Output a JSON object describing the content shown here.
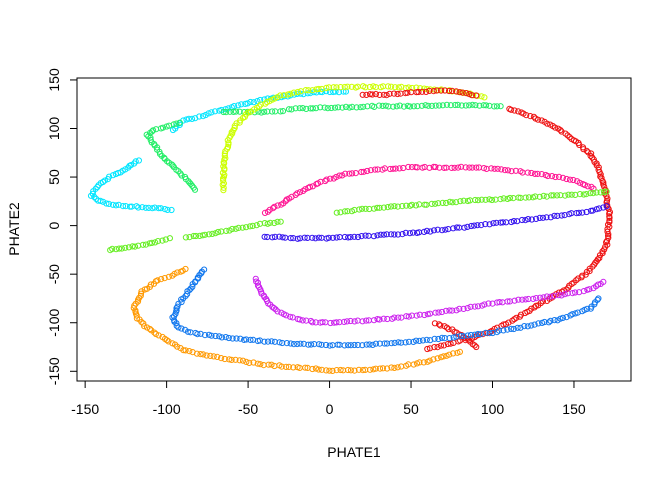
{
  "chart_data": {
    "type": "scatter",
    "title": "",
    "xlabel": "PHATE1",
    "ylabel": "PHATE2",
    "xlim": [
      -155,
      185
    ],
    "ylim": [
      -160,
      152
    ],
    "xticks": [
      -150,
      -100,
      -50,
      0,
      50,
      100,
      150
    ],
    "yticks": [
      -150,
      -100,
      -50,
      0,
      50,
      100,
      150
    ],
    "grid": false,
    "legend": "none",
    "marker": "open-circle",
    "series": [
      {
        "color": "#00E5FF",
        "segments": [
          [
            [
              -97,
              16
            ],
            [
              -105,
              18
            ],
            [
              -115,
              19
            ],
            [
              -125,
              20
            ],
            [
              -135,
              22
            ],
            [
              -142,
              26
            ],
            [
              -146,
              31
            ],
            [
              -143,
              40
            ],
            [
              -135,
              50
            ],
            [
              -125,
              58
            ],
            [
              -120,
              64
            ],
            [
              -117,
              67
            ]
          ],
          [
            [
              -96,
              98
            ],
            [
              -90,
              108
            ],
            [
              -80,
              112
            ],
            [
              -70,
              118
            ],
            [
              -60,
              122
            ],
            [
              -50,
              126
            ],
            [
              -40,
              130
            ],
            [
              -30,
              132
            ],
            [
              -20,
              135
            ],
            [
              -10,
              137
            ],
            [
              0,
              138
            ],
            [
              10,
              138
            ]
          ]
        ]
      },
      {
        "color": "#22EE66",
        "segments": [
          [
            [
              -82,
              37
            ],
            [
              -88,
              48
            ],
            [
              -95,
              60
            ],
            [
              -103,
              72
            ],
            [
              -108,
              84
            ],
            [
              -110,
              90
            ],
            [
              -112,
              94
            ],
            [
              -108,
              98
            ],
            [
              -100,
              102
            ],
            [
              -92,
              106
            ]
          ],
          [
            [
              -25,
              120
            ],
            [
              -10,
              121
            ],
            [
              10,
              122
            ],
            [
              30,
              123
            ],
            [
              50,
              123
            ],
            [
              70,
              124
            ],
            [
              90,
              124
            ],
            [
              105,
              123
            ]
          ],
          [
            [
              -28,
              118
            ],
            [
              -40,
              117
            ],
            [
              -55,
              117
            ],
            [
              -65,
              117
            ]
          ]
        ]
      },
      {
        "color": "#CCFF00",
        "segments": [
          [
            [
              -65,
              37
            ],
            [
              -65,
              55
            ],
            [
              -64,
              72
            ],
            [
              -62,
              88
            ],
            [
              -58,
              103
            ],
            [
              -50,
              116
            ],
            [
              -40,
              126
            ],
            [
              -30,
              134
            ],
            [
              -15,
              139
            ],
            [
              0,
              142
            ],
            [
              20,
              143
            ],
            [
              40,
              143
            ],
            [
              60,
              141
            ],
            [
              80,
              138
            ],
            [
              95,
              132
            ]
          ]
        ]
      },
      {
        "color": "#EE1111",
        "segments": [
          [
            [
              110,
              120
            ],
            [
              125,
              112
            ],
            [
              140,
              100
            ],
            [
              150,
              88
            ],
            [
              160,
              74
            ],
            [
              165,
              60
            ],
            [
              168,
              44
            ],
            [
              170,
              28
            ],
            [
              172,
              10
            ],
            [
              171,
              -6
            ],
            [
              170,
              -20
            ],
            [
              165,
              -35
            ],
            [
              157,
              -50
            ],
            [
              145,
              -65
            ],
            [
              130,
              -80
            ],
            [
              115,
              -95
            ],
            [
              100,
              -108
            ],
            [
              85,
              -117
            ],
            [
              70,
              -123
            ],
            [
              60,
              -127
            ]
          ],
          [
            [
              20,
              135
            ],
            [
              35,
              135
            ],
            [
              55,
              138
            ],
            [
              75,
              139
            ],
            [
              90,
              134
            ]
          ],
          [
            [
              65,
              -100
            ],
            [
              72,
              -105
            ],
            [
              78,
              -110
            ],
            [
              85,
              -118
            ],
            [
              90,
              -125
            ]
          ]
        ]
      },
      {
        "color": "#FF1493",
        "segments": [
          [
            [
              -40,
              13
            ],
            [
              -30,
              22
            ],
            [
              -20,
              33
            ],
            [
              -5,
              45
            ],
            [
              10,
              53
            ],
            [
              30,
              58
            ],
            [
              50,
              60
            ],
            [
              70,
              60
            ],
            [
              90,
              60
            ],
            [
              110,
              57
            ],
            [
              130,
              53
            ],
            [
              150,
              47
            ],
            [
              162,
              38
            ]
          ]
        ]
      },
      {
        "color": "#66EE22",
        "segments": [
          [
            [
              -135,
              -25
            ],
            [
              -125,
              -23
            ],
            [
              -115,
              -20
            ],
            [
              -105,
              -16
            ],
            [
              -98,
              -13
            ]
          ],
          [
            [
              -88,
              -12
            ],
            [
              -78,
              -10
            ],
            [
              -68,
              -7
            ],
            [
              -58,
              -3
            ],
            [
              -40,
              2
            ],
            [
              -30,
              4
            ]
          ],
          [
            [
              5,
              13
            ],
            [
              20,
              17
            ],
            [
              40,
              20
            ],
            [
              60,
              22
            ],
            [
              80,
              25
            ],
            [
              100,
              27
            ],
            [
              120,
              29
            ],
            [
              140,
              31
            ],
            [
              160,
              33
            ],
            [
              170,
              35
            ]
          ]
        ]
      },
      {
        "color": "#3311EE",
        "segments": [
          [
            [
              -40,
              -11
            ],
            [
              -20,
              -13
            ],
            [
              0,
              -13
            ],
            [
              20,
              -11
            ],
            [
              40,
              -9
            ],
            [
              60,
              -6
            ],
            [
              80,
              -2
            ],
            [
              100,
              2
            ],
            [
              120,
              6
            ],
            [
              140,
              10
            ],
            [
              160,
              15
            ],
            [
              170,
              20
            ]
          ]
        ]
      },
      {
        "color": "#CC22EE",
        "segments": [
          [
            [
              -45,
              -55
            ],
            [
              -42,
              -68
            ],
            [
              -38,
              -80
            ],
            [
              -30,
              -90
            ],
            [
              -20,
              -96
            ],
            [
              -10,
              -99
            ],
            [
              0,
              -100
            ],
            [
              20,
              -98
            ],
            [
              40,
              -95
            ],
            [
              60,
              -91
            ],
            [
              80,
              -86
            ],
            [
              100,
              -80
            ],
            [
              120,
              -76
            ],
            [
              140,
              -72
            ],
            [
              160,
              -66
            ],
            [
              168,
              -58
            ]
          ]
        ]
      },
      {
        "color": "#1177EE",
        "segments": [
          [
            [
              -77,
              -45
            ],
            [
              -82,
              -57
            ],
            [
              -88,
              -70
            ],
            [
              -93,
              -83
            ],
            [
              -96,
              -95
            ],
            [
              -93,
              -105
            ],
            [
              -85,
              -110
            ],
            [
              -70,
              -114
            ],
            [
              -55,
              -117
            ],
            [
              -40,
              -119
            ],
            [
              -20,
              -122
            ],
            [
              0,
              -123
            ],
            [
              20,
              -123
            ],
            [
              40,
              -121
            ],
            [
              60,
              -118
            ],
            [
              80,
              -114
            ],
            [
              100,
              -110
            ],
            [
              120,
              -104
            ],
            [
              140,
              -97
            ],
            [
              160,
              -85
            ],
            [
              165,
              -75
            ]
          ]
        ]
      },
      {
        "color": "#FF9900",
        "segments": [
          [
            [
              -88,
              -45
            ],
            [
              -95,
              -50
            ],
            [
              -105,
              -56
            ],
            [
              -115,
              -68
            ],
            [
              -120,
              -85
            ],
            [
              -118,
              -95
            ],
            [
              -112,
              -105
            ],
            [
              -100,
              -118
            ],
            [
              -90,
              -128
            ],
            [
              -75,
              -134
            ],
            [
              -60,
              -138
            ],
            [
              -40,
              -143
            ],
            [
              -20,
              -146
            ],
            [
              0,
              -149
            ],
            [
              20,
              -149
            ],
            [
              40,
              -146
            ],
            [
              60,
              -140
            ],
            [
              80,
              -130
            ]
          ]
        ]
      }
    ]
  }
}
